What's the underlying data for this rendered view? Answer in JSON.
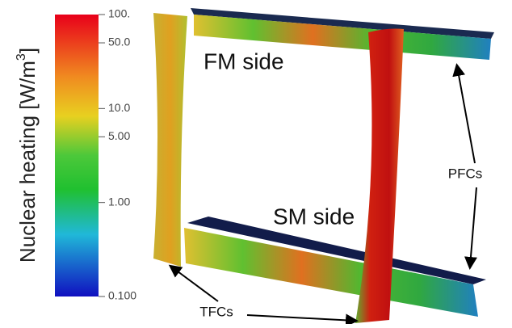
{
  "colorbar": {
    "title": [
      "Nuclear heating [W/m",
      "3",
      "]"
    ],
    "scale": "log",
    "range": [
      0.1,
      100
    ],
    "ticks": [
      {
        "value": 100,
        "label": "100."
      },
      {
        "value": 50,
        "label": "50.0"
      },
      {
        "value": 10,
        "label": "10.0"
      },
      {
        "value": 5,
        "label": "5.00"
      },
      {
        "value": 1,
        "label": "1.00"
      },
      {
        "value": 0.1,
        "label": "0.100"
      }
    ]
  },
  "labels": {
    "fm_side": "FM side",
    "sm_side": "SM side",
    "pfcs": "PFCs",
    "tfcs": "TFCs"
  }
}
